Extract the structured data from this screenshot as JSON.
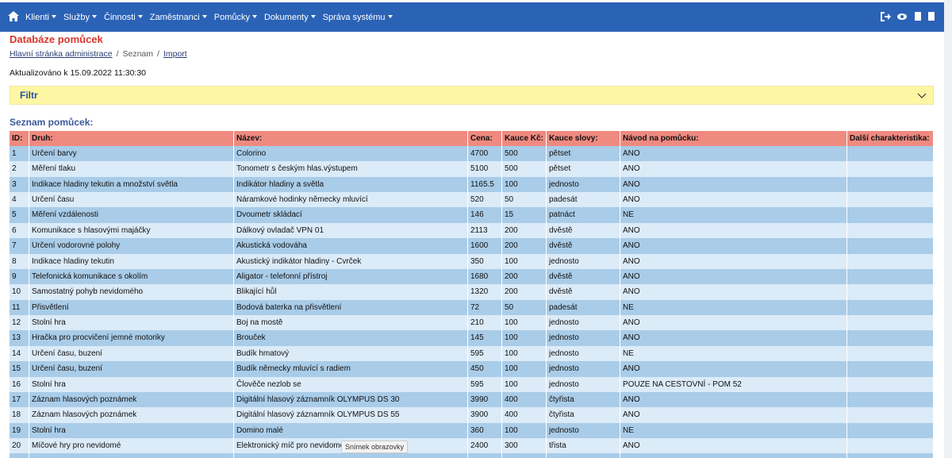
{
  "nav": {
    "items": [
      "Klienti",
      "Služby",
      "Činnosti",
      "Zaměstnanci",
      "Pomůcky",
      "Dokumenty",
      "Správa systému"
    ]
  },
  "header": {
    "title": "Databáze pomůcek"
  },
  "breadcrumb": {
    "items": [
      "Hlavní stránka administrace",
      "Seznam",
      "Import"
    ],
    "separator": "/"
  },
  "updated": "Aktualizováno k 15.09.2022 11:30:30",
  "filter": {
    "title": "Filtr"
  },
  "list_title": "Seznam pomůcek:",
  "table": {
    "headers": [
      "ID:",
      "Druh:",
      "Název:",
      "Cena:",
      "Kauce Kč:",
      "Kauce slovy:",
      "Návod na pomůcku:",
      "Další charakteristika:"
    ],
    "rows": [
      [
        "1",
        "Určení barvy",
        "Colorino",
        "4700",
        "500",
        "pětset",
        "ANO",
        ""
      ],
      [
        "2",
        "Měření tlaku",
        "Tonometr s českým hlas.výstupem",
        "5100",
        "500",
        "pětset",
        "ANO",
        ""
      ],
      [
        "3",
        "Indikace hladiny tekutin a množství světla",
        "Indikátor hladiny a světla",
        "1165.5",
        "100",
        "jednosto",
        "ANO",
        ""
      ],
      [
        "4",
        "Určení času",
        "Náramkové hodinky německy mluvící",
        "520",
        "50",
        "padesát",
        "ANO",
        ""
      ],
      [
        "5",
        "Měření vzdálenosti",
        "Dvoumetr skládací",
        "146",
        "15",
        "patnáct",
        "NE",
        ""
      ],
      [
        "6",
        "Komunikace s hlasovými majáčky",
        "Dálkový ovladač VPN 01",
        "2113",
        "200",
        "dvěstě",
        "ANO",
        ""
      ],
      [
        "7",
        "Určení vodorovné polohy",
        "Akustická vodováha",
        "1600",
        "200",
        "dvěstě",
        "ANO",
        ""
      ],
      [
        "8",
        "Indikace hladiny tekutin",
        "Akustický indikátor hladiny - Cvrček",
        "350",
        "100",
        "jednosto",
        "ANO",
        ""
      ],
      [
        "9",
        "Telefonická komunikace s okolím",
        "Aligator - telefonní přístroj",
        "1680",
        "200",
        "dvěstě",
        "ANO",
        ""
      ],
      [
        "10",
        "Samostatný pohyb nevidomého",
        "Blikající hůl",
        "1320",
        "200",
        "dvěstě",
        "ANO",
        ""
      ],
      [
        "11",
        "Přisvětlení",
        "Bodová baterka na přisvětlení",
        "72",
        "50",
        "padesát",
        "NE",
        ""
      ],
      [
        "12",
        "Stolní hra",
        "Boj na mostě",
        "210",
        "100",
        "jednosto",
        "ANO",
        ""
      ],
      [
        "13",
        "Hračka pro procvičení jemné motoriky",
        "Brouček",
        "145",
        "100",
        "jednosto",
        "ANO",
        ""
      ],
      [
        "14",
        "Určení času, buzení",
        "Budík hmatový",
        "595",
        "100",
        "jednosto",
        "NE",
        ""
      ],
      [
        "15",
        "Určení času, buzení",
        "Budík německy mluvící s radiem",
        "450",
        "100",
        "jednosto",
        "ANO",
        ""
      ],
      [
        "16",
        "Stolní hra",
        "Člověče nezlob se",
        "595",
        "100",
        "jednosto",
        "POUZE NA CESTOVNÍ - POM 52",
        ""
      ],
      [
        "17",
        "Záznam hlasových poznámek",
        "Digitální hlasový záznamník OLYMPUS DS 30",
        "3990",
        "400",
        "čtyřista",
        "ANO",
        ""
      ],
      [
        "18",
        "Záznam hlasových poznámek",
        "Digitální hlasový záznamník OLYMPUS DS 55",
        "3900",
        "400",
        "čtyřista",
        "ANO",
        ""
      ],
      [
        "19",
        "Stolní hra",
        "Domino malé",
        "360",
        "100",
        "jednosto",
        "NE",
        ""
      ],
      [
        "20",
        "Míčové hry pro nevidomé",
        "Elektronický míč pro nevidomé",
        "2400",
        "300",
        "třista",
        "ANO",
        ""
      ]
    ]
  },
  "tooltip": "Snímek obrazovky"
}
